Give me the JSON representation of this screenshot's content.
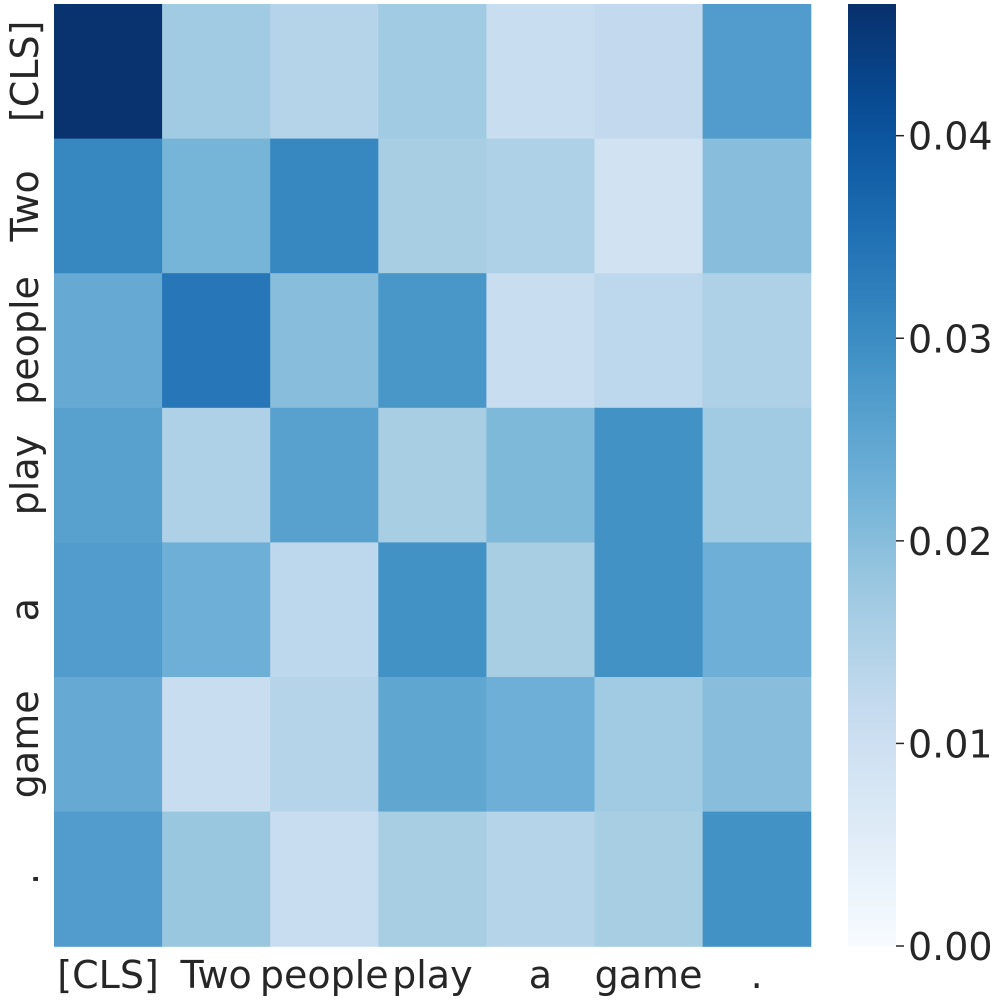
{
  "chart_data": {
    "type": "heatmap",
    "title": "",
    "xlabel": "",
    "ylabel": "",
    "x_labels": [
      "[CLS]",
      "Two",
      "people",
      "play",
      "a",
      "game",
      "."
    ],
    "y_labels": [
      "[CLS]",
      "Two",
      "people",
      "play",
      "a",
      "game",
      "."
    ],
    "values": [
      [
        0.046,
        0.017,
        0.014,
        0.017,
        0.011,
        0.012,
        0.027
      ],
      [
        0.031,
        0.022,
        0.031,
        0.016,
        0.015,
        0.009,
        0.02
      ],
      [
        0.024,
        0.034,
        0.02,
        0.028,
        0.011,
        0.013,
        0.015
      ],
      [
        0.026,
        0.015,
        0.026,
        0.016,
        0.021,
        0.029,
        0.017
      ],
      [
        0.027,
        0.023,
        0.013,
        0.029,
        0.016,
        0.029,
        0.023
      ],
      [
        0.024,
        0.011,
        0.014,
        0.025,
        0.023,
        0.017,
        0.02
      ],
      [
        0.027,
        0.018,
        0.011,
        0.016,
        0.014,
        0.016,
        0.029
      ]
    ],
    "colormap": "Blues",
    "vmin": 0.0,
    "vmax": 0.0465,
    "colorbar": {
      "ticks": [
        "0.00",
        "0.01",
        "0.02",
        "0.03",
        "0.04"
      ],
      "tick_values": [
        0.0,
        0.01,
        0.02,
        0.03,
        0.04
      ]
    },
    "grid": false,
    "legend": "colorbar-right"
  }
}
